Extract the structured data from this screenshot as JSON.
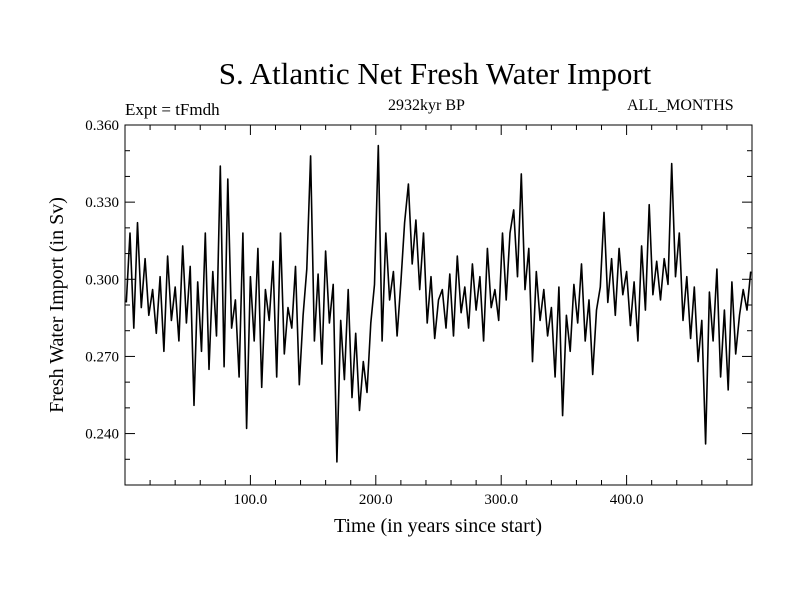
{
  "chart_data": {
    "type": "line",
    "title": "S. Atlantic Net Fresh Water Import",
    "subtitle_left": "Expt = tFmdh",
    "subtitle_center": "2932kyr BP",
    "subtitle_right": "ALL_MONTHS",
    "xlabel": "Time (in years since start)",
    "ylabel": "Fresh Water Import (in Sv)",
    "xlim": [
      0,
      500
    ],
    "ylim": [
      0.22,
      0.36
    ],
    "xticks": [
      100,
      200,
      300,
      400
    ],
    "xtick_labels": [
      "100.0",
      "200.0",
      "300.0",
      "400.0"
    ],
    "yticks": [
      0.24,
      0.27,
      0.3,
      0.33,
      0.36
    ],
    "ytick_labels": [
      "0.240",
      "0.270",
      "0.300",
      "0.330",
      "0.360"
    ],
    "grid": false,
    "series": [
      {
        "name": "Net Fresh Water Import",
        "x": [
          1,
          4,
          7,
          10,
          13,
          16,
          19,
          22,
          25,
          28,
          31,
          34,
          37,
          40,
          43,
          46,
          49,
          52,
          55,
          58,
          61,
          64,
          67,
          70,
          73,
          76,
          79,
          82,
          85,
          88,
          91,
          94,
          97,
          100,
          103,
          106,
          109,
          112,
          115,
          118,
          121,
          124,
          127,
          130,
          133,
          136,
          139,
          142,
          145,
          148,
          151,
          154,
          157,
          160,
          163,
          166,
          169,
          172,
          175,
          178,
          181,
          184,
          187,
          190,
          193,
          196,
          199,
          202,
          205,
          208,
          211,
          214,
          217,
          220,
          223,
          226,
          229,
          232,
          235,
          238,
          241,
          244,
          247,
          250,
          253,
          256,
          259,
          262,
          265,
          268,
          271,
          274,
          277,
          280,
          283,
          286,
          289,
          292,
          295,
          298,
          301,
          304,
          307,
          310,
          313,
          316,
          319,
          322,
          325,
          328,
          331,
          334,
          337,
          340,
          343,
          346,
          349,
          352,
          355,
          358,
          361,
          364,
          367,
          370,
          373,
          376,
          379,
          382,
          385,
          388,
          391,
          394,
          397,
          400,
          403,
          406,
          409,
          412,
          415,
          418,
          421,
          424,
          427,
          430,
          433,
          436,
          439,
          442,
          445,
          448,
          451,
          454,
          457,
          460,
          463,
          466,
          469,
          472,
          475,
          478,
          481,
          484,
          487,
          490,
          493,
          496,
          499
        ],
        "values": [
          0.291,
          0.318,
          0.281,
          0.322,
          0.289,
          0.308,
          0.286,
          0.296,
          0.279,
          0.301,
          0.272,
          0.309,
          0.284,
          0.297,
          0.276,
          0.313,
          0.283,
          0.305,
          0.251,
          0.299,
          0.272,
          0.318,
          0.265,
          0.303,
          0.278,
          0.344,
          0.266,
          0.339,
          0.281,
          0.292,
          0.262,
          0.318,
          0.242,
          0.301,
          0.276,
          0.312,
          0.258,
          0.296,
          0.284,
          0.307,
          0.262,
          0.318,
          0.271,
          0.289,
          0.281,
          0.305,
          0.259,
          0.286,
          0.304,
          0.348,
          0.276,
          0.302,
          0.267,
          0.311,
          0.283,
          0.298,
          0.229,
          0.284,
          0.261,
          0.296,
          0.254,
          0.279,
          0.249,
          0.268,
          0.256,
          0.283,
          0.298,
          0.352,
          0.276,
          0.318,
          0.292,
          0.303,
          0.278,
          0.299,
          0.322,
          0.337,
          0.306,
          0.323,
          0.296,
          0.318,
          0.283,
          0.301,
          0.277,
          0.292,
          0.296,
          0.281,
          0.302,
          0.278,
          0.309,
          0.287,
          0.297,
          0.281,
          0.306,
          0.288,
          0.301,
          0.276,
          0.312,
          0.289,
          0.296,
          0.284,
          0.318,
          0.292,
          0.318,
          0.327,
          0.301,
          0.341,
          0.296,
          0.312,
          0.268,
          0.303,
          0.284,
          0.296,
          0.278,
          0.289,
          0.262,
          0.297,
          0.247,
          0.286,
          0.272,
          0.298,
          0.283,
          0.306,
          0.276,
          0.292,
          0.263,
          0.288,
          0.297,
          0.326,
          0.291,
          0.308,
          0.286,
          0.312,
          0.294,
          0.303,
          0.282,
          0.299,
          0.276,
          0.313,
          0.288,
          0.329,
          0.294,
          0.307,
          0.292,
          0.308,
          0.298,
          0.345,
          0.301,
          0.318,
          0.284,
          0.301,
          0.277,
          0.297,
          0.268,
          0.284,
          0.236,
          0.295,
          0.276,
          0.304,
          0.262,
          0.288,
          0.257,
          0.299,
          0.271,
          0.286,
          0.296,
          0.288,
          0.303
        ]
      }
    ]
  }
}
